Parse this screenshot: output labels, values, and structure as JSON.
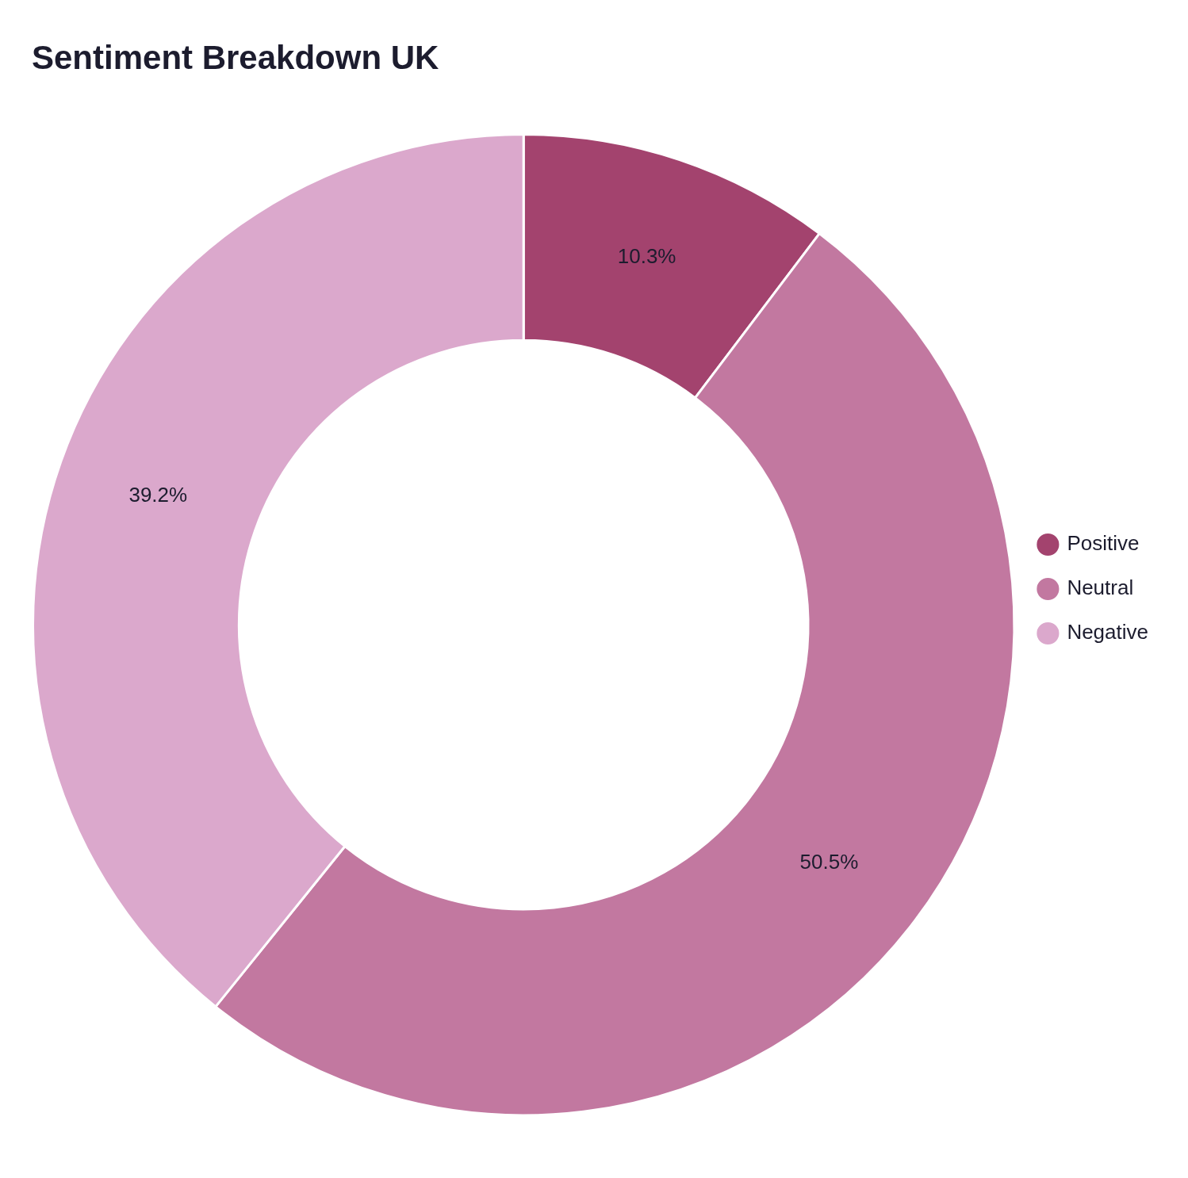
{
  "chart_data": {
    "type": "donut",
    "title": "Sentiment Breakdown UK",
    "categories": [
      "Positive",
      "Neutral",
      "Negative"
    ],
    "values": [
      10.3,
      50.5,
      39.2
    ],
    "value_labels": [
      "10.3%",
      "50.5%",
      "39.2%"
    ],
    "colors": [
      "#A3436E",
      "#C278A0",
      "#DBA8CC"
    ],
    "data_labels": true,
    "legend": "right"
  }
}
